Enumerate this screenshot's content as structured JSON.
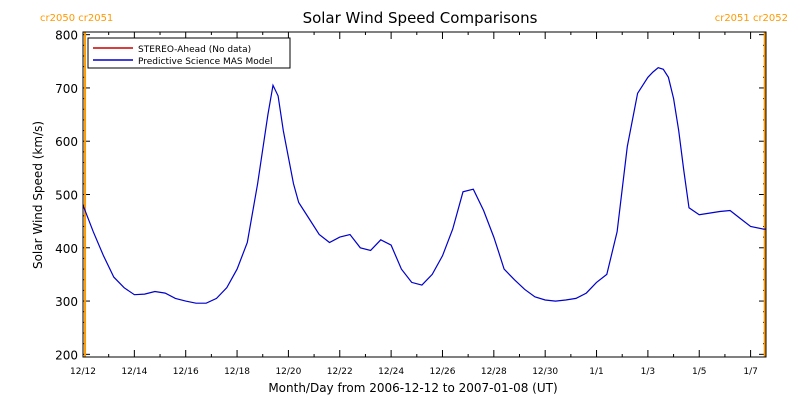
{
  "chart_data": {
    "type": "line",
    "title": "Solar Wind Speed Comparisons",
    "xlabel": "Month/Day from 2006-12-12 to 2007-01-08 (UT)",
    "ylabel": "Solar Wind Speed (km/s)",
    "xlim": [
      0,
      26.6
    ],
    "ylim": [
      195,
      805
    ],
    "yticks": [
      200,
      300,
      400,
      500,
      600,
      700,
      800
    ],
    "xtick_labels": [
      "12/12",
      "12/14",
      "12/16",
      "12/18",
      "12/20",
      "12/22",
      "12/24",
      "12/26",
      "12/28",
      "12/30",
      "1/1",
      "1/3",
      "1/5",
      "1/7"
    ],
    "xtick_positions": [
      0,
      2,
      4,
      6,
      8,
      10,
      12,
      14,
      16,
      18,
      20,
      22,
      24,
      26
    ],
    "carrington_left": "cr2050 cr2051",
    "carrington_right": "cr2051 cr2052",
    "carrington_color": "#ff9900",
    "carrington_x": [
      0.08,
      26.55
    ],
    "legend": {
      "placement": "top-left",
      "items": [
        {
          "label": "STEREO-Ahead (No data)",
          "color": "#cc0000"
        },
        {
          "label": "Predictive Science MAS Model",
          "color": "#0000cc"
        }
      ]
    },
    "series": [
      {
        "name": "Predictive Science MAS Model",
        "color": "#0000cc",
        "x": [
          0,
          0.4,
          0.8,
          1.2,
          1.6,
          2.0,
          2.4,
          2.8,
          3.2,
          3.6,
          4.0,
          4.4,
          4.8,
          5.2,
          5.6,
          6.0,
          6.4,
          6.8,
          7.2,
          7.4,
          7.6,
          7.8,
          8.0,
          8.2,
          8.4,
          8.8,
          9.2,
          9.6,
          10.0,
          10.4,
          10.8,
          11.2,
          11.6,
          12.0,
          12.4,
          12.8,
          13.2,
          13.6,
          14.0,
          14.4,
          14.8,
          15.2,
          15.6,
          16.0,
          16.2,
          16.4,
          16.8,
          17.2,
          17.6,
          18.0,
          18.4,
          18.8,
          19.2,
          19.6,
          20.0,
          20.4,
          20.8,
          21.2,
          21.6,
          22.0,
          22.2,
          22.4,
          22.6,
          22.8,
          23.0,
          23.2,
          23.4,
          23.6,
          24.0,
          24.4,
          24.8,
          25.2,
          25.6,
          26.0,
          26.5,
          26.6
        ],
        "y": [
          480,
          430,
          385,
          345,
          325,
          312,
          313,
          318,
          315,
          305,
          300,
          296,
          296,
          305,
          325,
          360,
          410,
          520,
          650,
          705,
          685,
          620,
          570,
          520,
          485,
          455,
          425,
          410,
          420,
          425,
          400,
          395,
          415,
          405,
          360,
          335,
          330,
          350,
          385,
          435,
          505,
          510,
          470,
          420,
          390,
          360,
          340,
          322,
          308,
          302,
          300,
          302,
          305,
          315,
          335,
          350,
          430,
          590,
          690,
          720,
          730,
          738,
          735,
          720,
          680,
          620,
          545,
          475,
          462,
          465,
          468,
          470,
          455,
          440,
          435,
          435
        ]
      }
    ]
  }
}
